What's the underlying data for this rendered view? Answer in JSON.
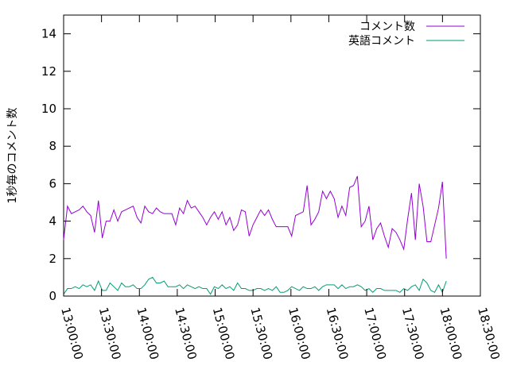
{
  "chart_data": {
    "type": "line",
    "title": "",
    "xlabel": "",
    "ylabel": "1秒毎のコメント数",
    "xlim": [
      "13:00:00",
      "18:30:00"
    ],
    "ylim": [
      0,
      15
    ],
    "x_ticks": [
      "13:00:00",
      "13:30:00",
      "14:00:00",
      "14:30:00",
      "15:00:00",
      "15:30:00",
      "16:00:00",
      "16:30:00",
      "17:00:00",
      "17:30:00",
      "18:00:00",
      "18:30:00"
    ],
    "y_ticks": [
      0,
      2,
      4,
      6,
      8,
      10,
      12,
      14
    ],
    "grid": false,
    "legend_position": "top-right",
    "x_interval_minutes": 3,
    "series": [
      {
        "name": "コメント数",
        "color": "#9400d3",
        "values": [
          3.0,
          4.8,
          4.4,
          4.5,
          4.6,
          4.8,
          4.5,
          4.3,
          3.4,
          5.1,
          3.1,
          4.0,
          4.0,
          4.6,
          4.0,
          4.5,
          4.6,
          4.7,
          4.8,
          4.2,
          3.9,
          4.8,
          4.5,
          4.4,
          4.7,
          4.5,
          4.4,
          4.4,
          4.4,
          3.8,
          4.7,
          4.4,
          5.1,
          4.7,
          4.8,
          4.5,
          4.2,
          3.8,
          4.2,
          4.5,
          4.1,
          4.5,
          3.8,
          4.2,
          3.5,
          3.8,
          4.6,
          4.5,
          3.2,
          3.8,
          4.2,
          4.6,
          4.3,
          4.6,
          4.1,
          3.7,
          3.7,
          3.7,
          3.7,
          3.2,
          4.3,
          4.4,
          4.5,
          5.9,
          3.8,
          4.1,
          4.5,
          5.6,
          5.2,
          5.6,
          5.2,
          4.2,
          4.8,
          4.3,
          5.8,
          5.9,
          6.4,
          3.7,
          4.0,
          4.8,
          3.0,
          3.6,
          3.9,
          3.2,
          2.6,
          3.6,
          3.4,
          3.0,
          2.5,
          4.1,
          5.5,
          3.0,
          6.0,
          4.8,
          2.9,
          2.9,
          3.8,
          4.7,
          6.1,
          2.0
        ],
        "last_x": "18:03:00"
      },
      {
        "name": "英語コメント",
        "color": "#009e73",
        "values": [
          0.1,
          0.4,
          0.4,
          0.5,
          0.4,
          0.6,
          0.5,
          0.6,
          0.3,
          0.8,
          0.3,
          0.3,
          0.7,
          0.5,
          0.3,
          0.7,
          0.5,
          0.5,
          0.6,
          0.4,
          0.4,
          0.6,
          0.9,
          1.0,
          0.7,
          0.7,
          0.8,
          0.5,
          0.5,
          0.5,
          0.6,
          0.4,
          0.6,
          0.5,
          0.4,
          0.5,
          0.4,
          0.4,
          0.1,
          0.5,
          0.4,
          0.6,
          0.4,
          0.5,
          0.3,
          0.7,
          0.4,
          0.4,
          0.3,
          0.3,
          0.4,
          0.4,
          0.3,
          0.4,
          0.3,
          0.5,
          0.2,
          0.2,
          0.3,
          0.5,
          0.4,
          0.3,
          0.5,
          0.4,
          0.4,
          0.5,
          0.3,
          0.5,
          0.6,
          0.6,
          0.6,
          0.4,
          0.6,
          0.4,
          0.5,
          0.5,
          0.6,
          0.5,
          0.3,
          0.4,
          0.2,
          0.4,
          0.4,
          0.3,
          0.3,
          0.3,
          0.3,
          0.2,
          0.4,
          0.3,
          0.5,
          0.6,
          0.3,
          0.9,
          0.7,
          0.3,
          0.2,
          0.6,
          0.2,
          0.8
        ],
        "last_x": "18:03:00"
      }
    ]
  }
}
